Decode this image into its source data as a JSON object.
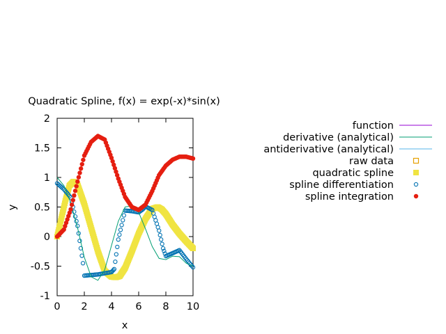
{
  "chart_data": {
    "type": "scatter",
    "title": "Quadratic Spline, f(x) = exp(-x)*sin(x)",
    "xlabel": "x",
    "ylabel": "y",
    "xlim": [
      0,
      10
    ],
    "ylim": [
      -1,
      2
    ],
    "x_ticks": [
      "0",
      "2",
      "4",
      "6",
      "8",
      "10"
    ],
    "y_ticks": [
      "-1",
      "-0.5",
      "0",
      "0.5",
      "1",
      "1.5",
      "2"
    ],
    "grid": false,
    "legend_position": "right, outside plot",
    "series": [
      {
        "name": "function",
        "style": "line",
        "color": "#9400d3",
        "x": [],
        "y": []
      },
      {
        "name": "derivative (analytical)",
        "style": "line",
        "color": "#009e73",
        "x": [
          0,
          0.5,
          1,
          1.5,
          2,
          2.5,
          3,
          3.5,
          4,
          4.5,
          5,
          5.5,
          6,
          6.5,
          7,
          7.5,
          8,
          8.5,
          9,
          9.5,
          10
        ],
        "y": [
          1.0,
          0.86,
          0.57,
          0.15,
          -0.35,
          -0.68,
          -0.74,
          -0.56,
          -0.15,
          0.26,
          0.5,
          0.52,
          0.41,
          0.13,
          -0.17,
          -0.37,
          -0.39,
          -0.33,
          -0.34,
          -0.45,
          -0.5
        ]
      },
      {
        "name": "antiderivative (analytical)",
        "style": "line",
        "color": "#56b4e9",
        "x": [],
        "y": []
      },
      {
        "name": "raw data",
        "style": "open-square",
        "color": "#e69f00",
        "x": [],
        "y": []
      },
      {
        "name": "quadratic spline",
        "style": "filled-square",
        "color": "#f0e442",
        "x": [
          0,
          0.3,
          0.6,
          0.9,
          1.2,
          1.5,
          2,
          2.5,
          3,
          3.5,
          4,
          4.3,
          4.6,
          5,
          5.5,
          6,
          6.5,
          7,
          7.4,
          7.7,
          8,
          8.5,
          9,
          9.5,
          10
        ],
        "y": [
          0.0,
          0.3,
          0.6,
          0.86,
          0.93,
          0.88,
          0.55,
          0.15,
          -0.25,
          -0.58,
          -0.68,
          -0.69,
          -0.67,
          -0.53,
          -0.25,
          0.05,
          0.3,
          0.47,
          0.5,
          0.46,
          0.38,
          0.2,
          0.05,
          -0.08,
          -0.2
        ]
      },
      {
        "name": "spline differentiation",
        "style": "open-circle",
        "color": "#0072b2",
        "x": [
          0,
          0.5,
          1,
          1.5,
          1.9,
          2.0,
          2.5,
          3,
          3.5,
          4,
          4.2,
          4.5,
          5,
          5.5,
          6,
          6.3,
          6.5,
          7,
          7.5,
          7.8,
          8,
          8.5,
          9,
          9.5,
          10
        ],
        "y": [
          0.9,
          0.8,
          0.66,
          0.18,
          -0.45,
          -0.66,
          -0.65,
          -0.64,
          -0.62,
          -0.6,
          -0.55,
          -0.05,
          0.44,
          0.43,
          0.41,
          0.46,
          0.51,
          0.45,
          0.1,
          -0.2,
          -0.33,
          -0.28,
          -0.23,
          -0.38,
          -0.52
        ]
      },
      {
        "name": "spline integration",
        "style": "star",
        "color": "#e51e10",
        "x": [
          0,
          0.5,
          1,
          1.5,
          2,
          2.5,
          3,
          3.5,
          4,
          4.5,
          5,
          5.5,
          6,
          6.5,
          7,
          7.5,
          8,
          8.5,
          9,
          9.5,
          10
        ],
        "y": [
          0.0,
          0.12,
          0.46,
          0.93,
          1.37,
          1.6,
          1.7,
          1.64,
          1.33,
          0.98,
          0.67,
          0.5,
          0.45,
          0.54,
          0.77,
          1.04,
          1.2,
          1.3,
          1.35,
          1.35,
          1.32
        ]
      }
    ]
  }
}
